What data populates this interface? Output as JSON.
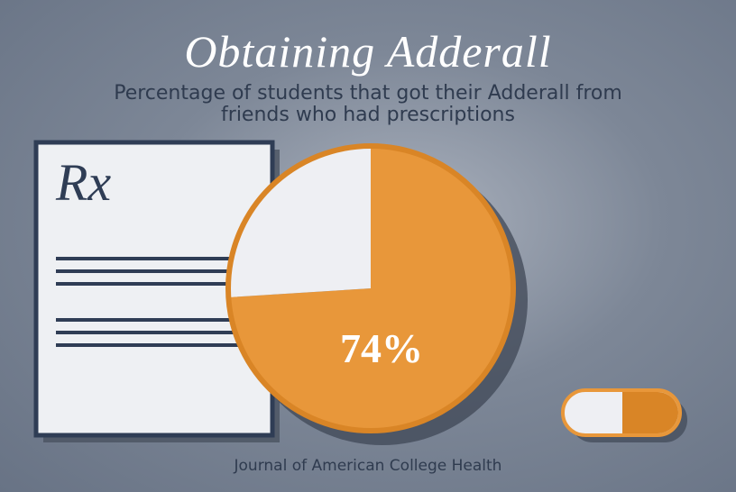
{
  "chart_data": {
    "type": "pie",
    "title": "Obtaining Adderall",
    "subtitle": "Percentage of students that got their Adderall from friends who had prescriptions",
    "categories": [
      null,
      null
    ],
    "values": [
      74,
      26
    ],
    "value_labels": [
      "74%",
      null
    ],
    "colors": [
      "#e8973a",
      "#eeeff3"
    ],
    "edge_color": "#d98526"
  },
  "prescription_symbol": "Rx",
  "source": "Journal of American College Health"
}
